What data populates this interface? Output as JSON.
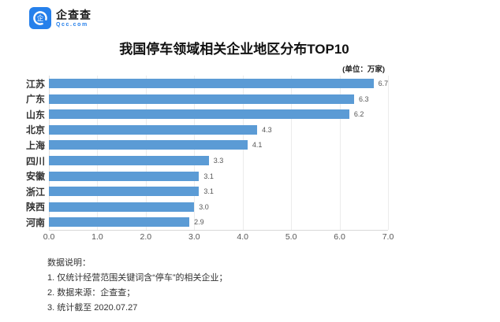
{
  "brand": {
    "name": "企查查",
    "domain": "Qcc.com",
    "logo_color": "#2680eb"
  },
  "title": "我国停车领域相关企业地区分布TOP10",
  "unit_label": "(单位：万家)",
  "chart_data": {
    "type": "bar",
    "orientation": "horizontal",
    "title": "我国停车领域相关企业地区分布TOP10",
    "unit": "万家",
    "categories": [
      "江苏",
      "广东",
      "山东",
      "北京",
      "上海",
      "四川",
      "安徽",
      "浙江",
      "陕西",
      "河南"
    ],
    "values": [
      6.7,
      6.3,
      6.2,
      4.3,
      4.1,
      3.3,
      3.1,
      3.1,
      3.0,
      2.9
    ],
    "value_labels": [
      "6.7",
      "6.3",
      "6.2",
      "4.3",
      "4.1",
      "3.3",
      "3.1",
      "3.1",
      "3.0",
      "2.9"
    ],
    "xlim": [
      0,
      7
    ],
    "x_ticks": [
      "0.0",
      "1.0",
      "2.0",
      "3.0",
      "4.0",
      "5.0",
      "6.0",
      "7.0"
    ],
    "bar_color": "#5b9bd5",
    "grid": true,
    "legend": "none"
  },
  "notes": {
    "heading": "数据说明：",
    "items": [
      "1. 仅统计经营范围关键词含“停车”的相关企业；",
      "2. 数据来源：企查查；",
      "3. 统计截至 2020.07.27"
    ]
  }
}
